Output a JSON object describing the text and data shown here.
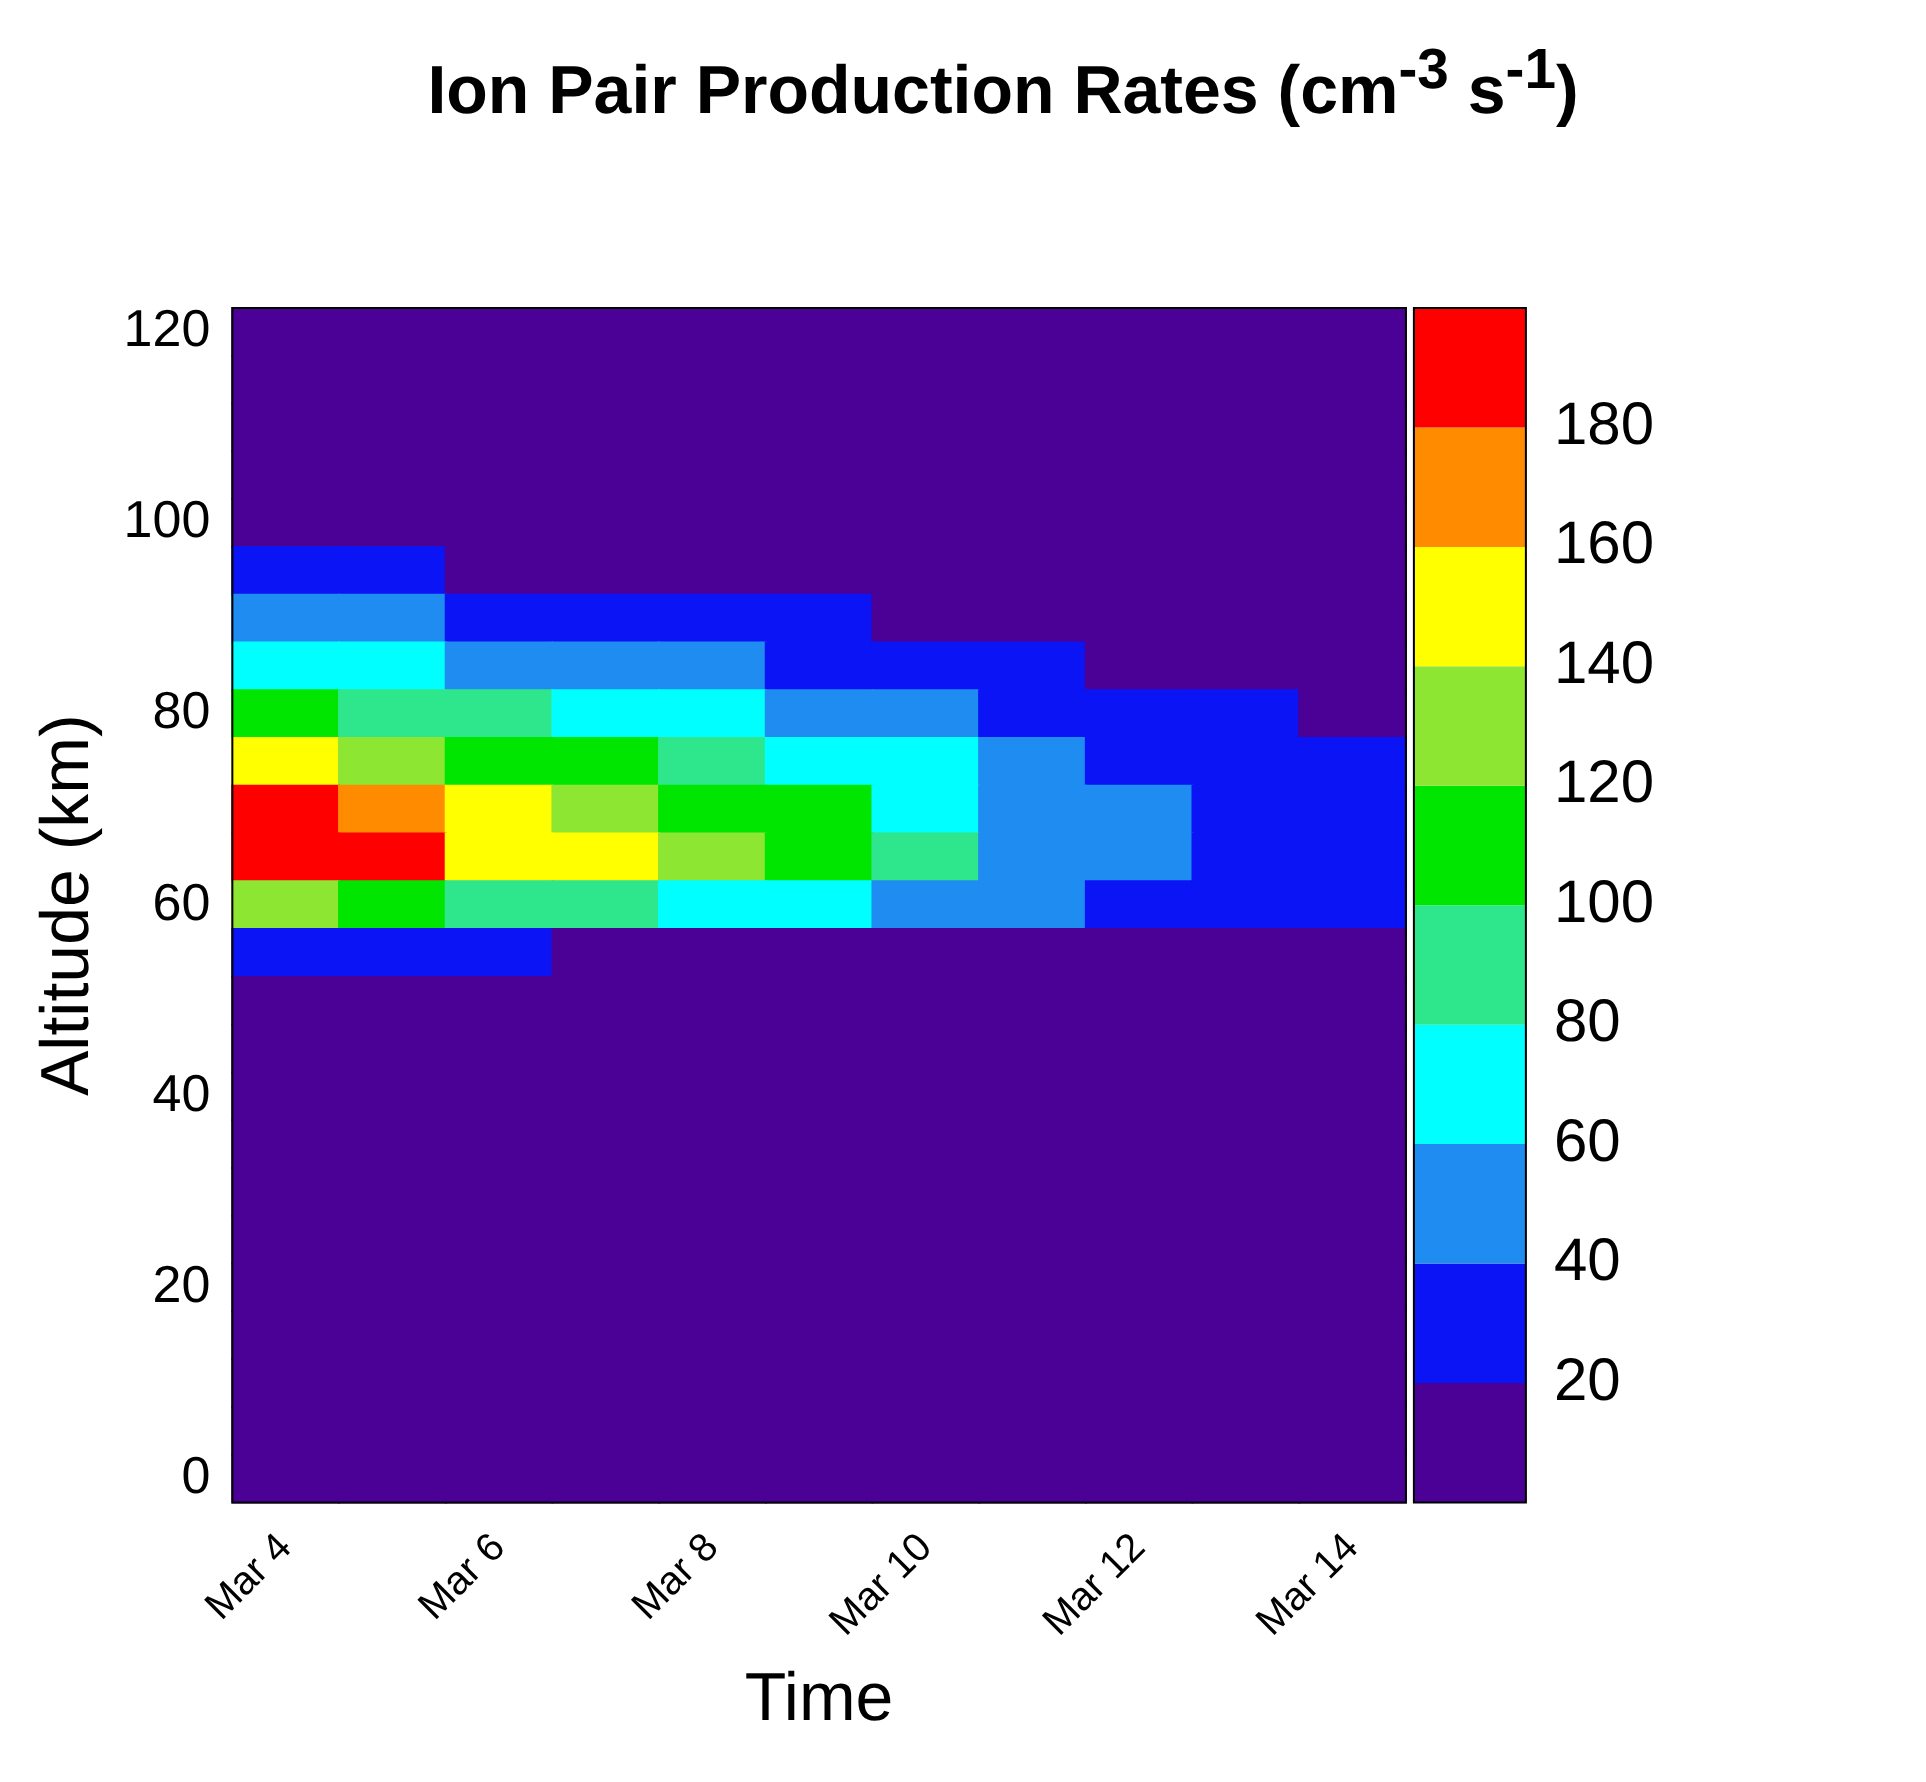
{
  "chart_data": {
    "type": "heatmap",
    "title": "Ion Pair Production Rates (cm$^{-3}$ s$^{-1}$)",
    "xlabel": "Time",
    "ylabel": "Altitude (km)",
    "categories": [
      "Mar 4",
      null,
      "Mar 6",
      null,
      "Mar 8",
      null,
      "Mar 10",
      null,
      "Mar 12",
      null,
      "Mar 14"
    ],
    "y_categories": [
      "120",
      null,
      null,
      null,
      "100",
      null,
      null,
      null,
      "80",
      null,
      null,
      null,
      "60",
      null,
      null,
      null,
      "40",
      null,
      null,
      null,
      "20",
      null,
      null,
      null,
      "0"
    ],
    "cells": [
      [
        5,
        5,
        5,
        5,
        5,
        5,
        5,
        5,
        5,
        5,
        5
      ],
      [
        5,
        5,
        5,
        5,
        5,
        5,
        5,
        5,
        5,
        5,
        5
      ],
      [
        5,
        5,
        5,
        5,
        5,
        5,
        5,
        5,
        5,
        5,
        5
      ],
      [
        5,
        5,
        5,
        5,
        5,
        5,
        5,
        5,
        5,
        5,
        5
      ],
      [
        5,
        5,
        5,
        5,
        5,
        5,
        5,
        5,
        5,
        5,
        5
      ],
      [
        30,
        30,
        10,
        10,
        10,
        10,
        10,
        10,
        10,
        10,
        10
      ],
      [
        50,
        50,
        30,
        30,
        30,
        30,
        10,
        10,
        10,
        10,
        10
      ],
      [
        70,
        70,
        50,
        50,
        50,
        30,
        30,
        30,
        10,
        10,
        10
      ],
      [
        110,
        90,
        90,
        70,
        70,
        50,
        50,
        30,
        30,
        30,
        10
      ],
      [
        150,
        130,
        110,
        110,
        90,
        70,
        70,
        50,
        30,
        30,
        30
      ],
      [
        190,
        170,
        150,
        130,
        110,
        110,
        70,
        50,
        50,
        30,
        30
      ],
      [
        190,
        190,
        150,
        150,
        130,
        110,
        90,
        50,
        50,
        30,
        30
      ],
      [
        130,
        110,
        90,
        90,
        70,
        70,
        50,
        50,
        30,
        30,
        30
      ],
      [
        30,
        30,
        30,
        10,
        10,
        10,
        10,
        10,
        10,
        10,
        10
      ],
      [
        5,
        5,
        5,
        5,
        5,
        5,
        5,
        5,
        5,
        5,
        5
      ],
      [
        5,
        5,
        5,
        5,
        5,
        5,
        5,
        5,
        5,
        5,
        5
      ],
      [
        5,
        5,
        5,
        5,
        5,
        5,
        5,
        5,
        5,
        5,
        5
      ],
      [
        5,
        5,
        5,
        5,
        5,
        5,
        5,
        5,
        5,
        5,
        5
      ],
      [
        5,
        5,
        5,
        5,
        5,
        5,
        5,
        5,
        5,
        5,
        5
      ],
      [
        5,
        5,
        5,
        5,
        5,
        5,
        5,
        5,
        5,
        5,
        5
      ],
      [
        5,
        5,
        5,
        5,
        5,
        5,
        5,
        5,
        5,
        5,
        5
      ],
      [
        5,
        5,
        5,
        5,
        5,
        5,
        5,
        5,
        5,
        5,
        5
      ],
      [
        5,
        5,
        5,
        5,
        5,
        5,
        5,
        5,
        5,
        5,
        5
      ],
      [
        5,
        5,
        5,
        5,
        5,
        5,
        5,
        5,
        5,
        5,
        5
      ],
      [
        5,
        5,
        5,
        5,
        5,
        5,
        5,
        5,
        5,
        5,
        5
      ]
    ],
    "clim": [
      0,
      200
    ],
    "cticks": [
      20,
      40,
      60,
      80,
      100,
      120,
      140,
      160,
      180
    ]
  }
}
